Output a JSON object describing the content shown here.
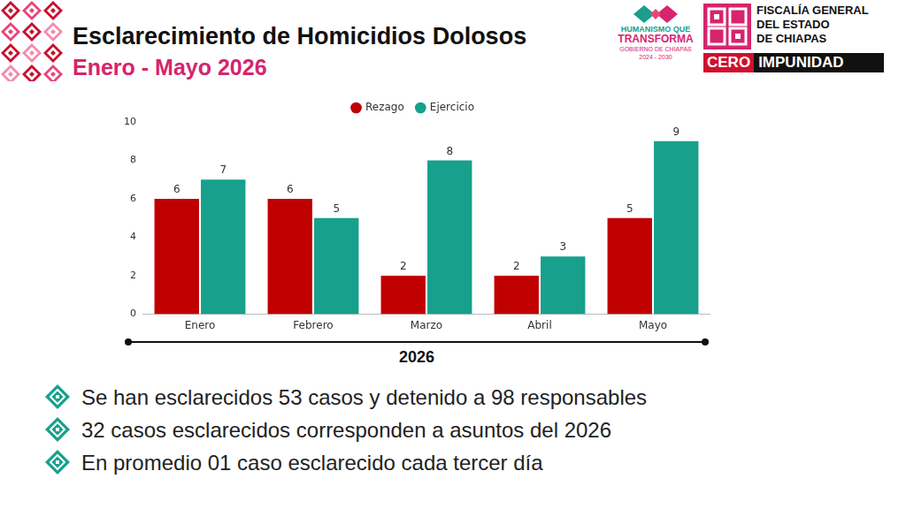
{
  "chart_data": {
    "type": "bar",
    "title": "Esclarecimiento de Homicidios Dolosos",
    "subtitle": "Enero - Mayo 2026",
    "categories": [
      "Enero",
      "Febrero",
      "Marzo",
      "Abril",
      "Mayo"
    ],
    "series": [
      {
        "name": "Rezago",
        "color": "#c00000",
        "values": [
          6,
          6,
          2,
          2,
          5
        ]
      },
      {
        "name": "Ejercicio",
        "color": "#17a08c",
        "values": [
          7,
          5,
          8,
          3,
          9
        ]
      }
    ],
    "x_label": "2026",
    "ylim": [
      0,
      10
    ],
    "yticks": [
      0,
      2,
      4,
      6,
      8,
      10
    ],
    "grid": false,
    "legend": "top",
    "data_labels": true
  },
  "logos": {
    "gobierno": [
      "HUMANISMO QUE",
      "TRANSFORMA",
      "GOBIERNO DE CHIAPAS",
      "2024 - 2030"
    ],
    "fiscalia": [
      "FISCALÍA GENERAL",
      "DEL ESTADO",
      "DE CHIAPAS"
    ],
    "lema": [
      "CERO",
      "IMPUNIDAD"
    ]
  },
  "bullets": [
    "Se han esclarecidos 53 casos y detenido a 98 responsables",
    "32 casos esclarecidos corresponden a asuntos del 2026",
    "En promedio 01 caso esclarecido cada tercer día"
  ]
}
